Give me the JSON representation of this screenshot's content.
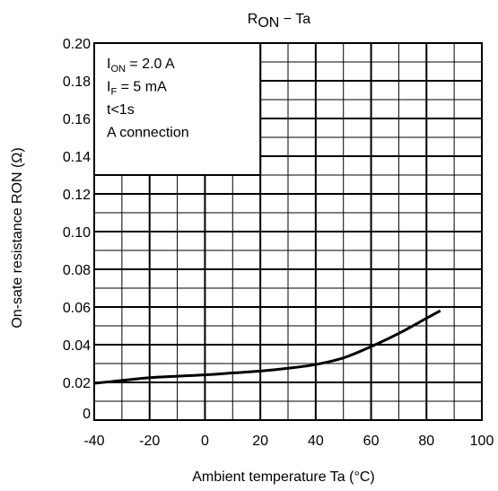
{
  "chart_data": {
    "type": "line",
    "title_main": "R",
    "title_sub": "ON",
    "title_rest": " − Ta",
    "xlabel": "Ambient temperature   Ta   (°C)",
    "ylabel_main": "On-sate resistance   RON    (Ω)",
    "xlim": [
      -40,
      100
    ],
    "ylim": [
      0,
      0.2
    ],
    "x_major_ticks": [
      -40,
      -20,
      0,
      20,
      40,
      60,
      80,
      100
    ],
    "x_tick_labels": [
      "-40",
      "-20",
      "0",
      "20",
      "40",
      "60",
      "80",
      "100"
    ],
    "y_major_ticks": [
      0,
      0.02,
      0.04,
      0.06,
      0.08,
      0.1,
      0.12,
      0.14,
      0.16,
      0.18,
      0.2
    ],
    "y_tick_labels": [
      "0",
      "0.02",
      "0.04",
      "0.06",
      "0.08",
      "0.10",
      "0.12",
      "0.14",
      "0.16",
      "0.18",
      "0.20"
    ],
    "x_minor_step": 10,
    "y_minor_step": 0.01,
    "grid": true,
    "series": [
      {
        "x": [
          -40,
          -30,
          -20,
          -10,
          0,
          10,
          20,
          30,
          40,
          50,
          60,
          70,
          80,
          85
        ],
        "y": [
          0.0195,
          0.021,
          0.0225,
          0.0233,
          0.024,
          0.025,
          0.026,
          0.0275,
          0.0295,
          0.033,
          0.039,
          0.046,
          0.054,
          0.058
        ]
      }
    ],
    "annotation_box": {
      "lines": [
        {
          "main": "I",
          "sub": "ON",
          "rest": " = 2.0 A"
        },
        {
          "main": "I",
          "sub": "F",
          "rest": " = 5 mA"
        },
        {
          "main": "t<1s",
          "sub": "",
          "rest": ""
        },
        {
          "main": "A connection",
          "sub": "",
          "rest": ""
        }
      ],
      "x_range": [
        -40,
        20
      ],
      "y_range": [
        0.13,
        0.2
      ]
    }
  }
}
